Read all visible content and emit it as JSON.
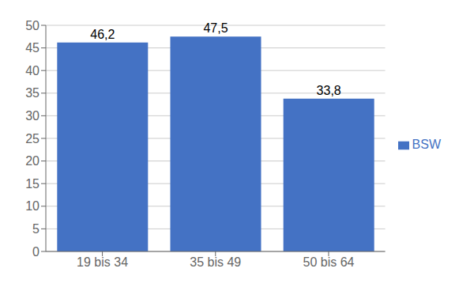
{
  "chart_data": {
    "type": "bar",
    "categories": [
      "19 bis 34",
      "35 bis 49",
      "50 bis 64"
    ],
    "series": [
      {
        "name": "BSW",
        "color": "#4472C4",
        "values": [
          46.2,
          47.5,
          33.8
        ],
        "value_labels": [
          "46,2",
          "47,5",
          "33,8"
        ]
      }
    ],
    "ylim": [
      0,
      50
    ],
    "yticks": [
      0,
      5,
      10,
      15,
      20,
      25,
      30,
      35,
      40,
      45,
      50
    ],
    "grid": true,
    "legend": "right",
    "data_labels": true
  }
}
